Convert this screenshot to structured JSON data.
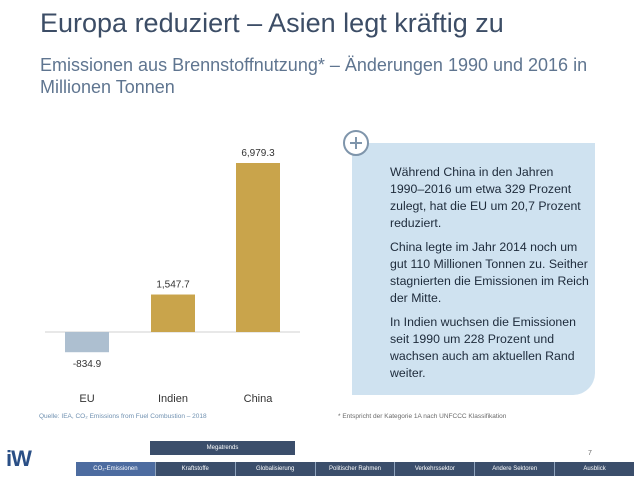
{
  "header": {
    "title": "Europa reduziert – Asien legt kräftig zu",
    "subtitle": "Emissionen aus Brennstoffnutzung* – Änderungen 1990 und 2016 in Millionen Tonnen"
  },
  "chart_data": {
    "type": "bar",
    "categories": [
      "EU",
      "Indien",
      "China"
    ],
    "values": [
      -834.9,
      1547.7,
      6979.3
    ],
    "value_labels": [
      "-834.9",
      "1,547.7",
      "6,979.3"
    ],
    "ylim": [
      -834.9,
      6979.3
    ],
    "colors": {
      "negative": "#adbfd0",
      "positive": "#c9a44b"
    },
    "grid": false,
    "legend": "none"
  },
  "infobox": {
    "paragraphs": [
      "Während China in den Jahren 1990–2016 um etwa 329 Prozent zulegt, hat die EU um 20,7 Prozent reduziert.",
      "China legte im Jahr 2014 noch um gut 110 Millionen Tonnen zu. Seither stagnierten die Emissionen im Reich der Mitte.",
      "In Indien wuchsen die Emissionen seit 1990 um 228 Prozent und wachsen auch am aktuellen Rand weiter."
    ],
    "badge_icon": "plus-circle-icon"
  },
  "footer": {
    "source": "Quelle: IEA, CO₂ Emissions from Fuel Combustion – 2018",
    "footnote": "* Entspricht der Kategorie 1A nach UNFCCC Klassifikation",
    "page_number": "7",
    "logo_text": "iW",
    "megatrends_label": "Megatrends",
    "nav": [
      "CO₂-Emissionen",
      "Kraftstoffe",
      "Globalisierung",
      "Politischer Rahmen",
      "Verkehrssektor",
      "Andere Sektoren",
      "Ausblick"
    ],
    "active_nav": 0
  }
}
